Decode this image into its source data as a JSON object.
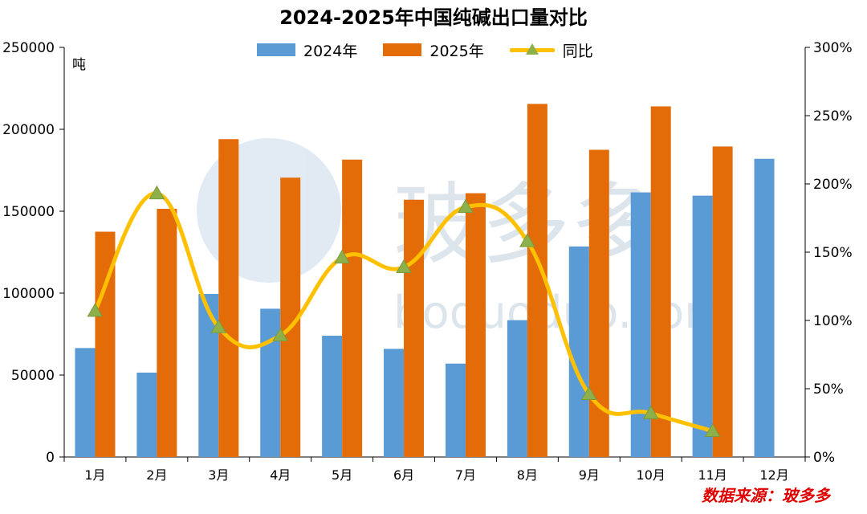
{
  "title": "2024-2025年中国纯碱出口量对比",
  "unit_label": "吨",
  "source": "数据来源：玻多多",
  "watermark_text": "玻多多",
  "watermark_sub": "boduoduo.com",
  "legend": {
    "s2024": "2024年",
    "s2025": "2025年",
    "yoy": "同比"
  },
  "colors": {
    "s2024": "#5B9BD5",
    "s2025": "#E36C09",
    "yoy_line": "#FFC000",
    "yoy_marker": "#8DB04A"
  },
  "chart_data": {
    "type": "bar",
    "categories": [
      "1月",
      "2月",
      "3月",
      "4月",
      "5月",
      "6月",
      "7月",
      "8月",
      "9月",
      "10月",
      "11月",
      "12月"
    ],
    "series": [
      {
        "name": "2024年",
        "type": "bar",
        "axis": "left",
        "values": [
          66500,
          51500,
          99500,
          90500,
          74000,
          66000,
          57000,
          83500,
          128500,
          161500,
          159500,
          182000
        ]
      },
      {
        "name": "2025年",
        "type": "bar",
        "axis": "left",
        "values": [
          137500,
          151500,
          194000,
          170500,
          181500,
          157000,
          161000,
          215500,
          187500,
          214000,
          189500,
          null
        ]
      },
      {
        "name": "同比",
        "type": "line",
        "axis": "right",
        "values": [
          107,
          193,
          95,
          89,
          146,
          139,
          183,
          158,
          46,
          32,
          19,
          null
        ]
      }
    ],
    "ylim_left": [
      0,
      250000
    ],
    "yticks_left": [
      0,
      50000,
      100000,
      150000,
      200000,
      250000
    ],
    "ytick_labels_left": [
      "0",
      "50000",
      "100000",
      "150000",
      "200000",
      "250000"
    ],
    "ylim_right": [
      0,
      300
    ],
    "yticks_right": [
      0,
      50,
      100,
      150,
      200,
      250,
      300
    ],
    "ytick_labels_right": [
      "0%",
      "50%",
      "100%",
      "150%",
      "200%",
      "250%",
      "300%"
    ],
    "grid": false,
    "legend_position": "top"
  }
}
